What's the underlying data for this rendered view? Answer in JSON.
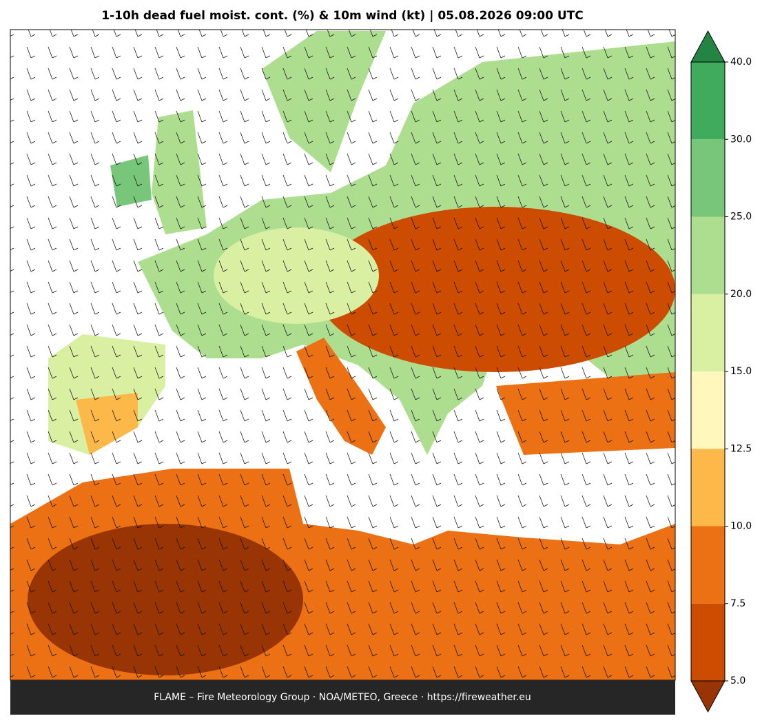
{
  "header": {
    "title": "1-10h dead fuel moist. cont. (%) & 10m wind (kt)  |  05.08.2026 09:00 UTC"
  },
  "colorbar": {
    "levels": [
      {
        "value": 5,
        "label": "5.0"
      },
      {
        "value": 7.5,
        "label": "7.5"
      },
      {
        "value": 10,
        "label": "10.0"
      },
      {
        "value": 12.5,
        "label": "12.5"
      },
      {
        "value": 15,
        "label": "15.0"
      },
      {
        "value": 20,
        "label": "20.0"
      },
      {
        "value": 25,
        "label": "25.0"
      },
      {
        "value": 30,
        "label": "30.0"
      },
      {
        "value": 40,
        "label": "40.0"
      }
    ],
    "colors": [
      "#cc4c02",
      "#ec7014",
      "#fdb84a",
      "#fff7bc",
      "#d9f0a3",
      "#addd8e",
      "#78c679",
      "#41ab5d"
    ],
    "under_color": "#993404",
    "over_color": "#238443"
  },
  "footer": {
    "text": "FLAME – Fire Meteorology Group · NOA/METEO, Greece · https://fireweather.eu"
  }
}
